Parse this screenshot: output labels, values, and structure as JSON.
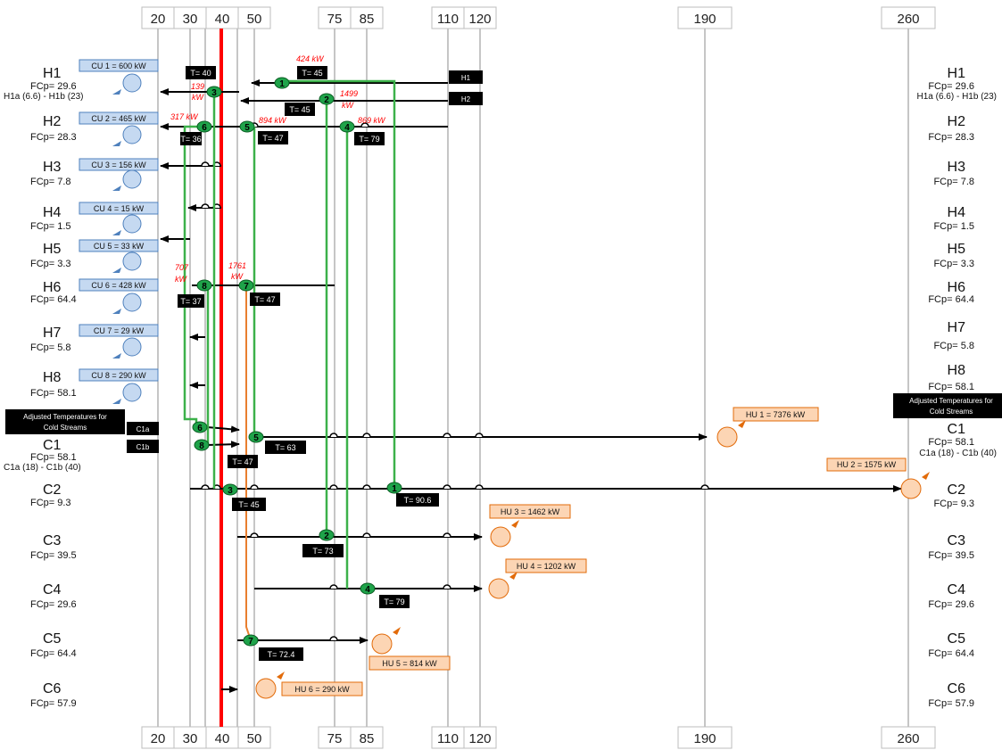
{
  "scale": {
    "ticks": [
      "20",
      "30",
      "40",
      "50",
      "75",
      "85",
      "110",
      "120",
      "190",
      "260"
    ]
  },
  "hot_streams": [
    {
      "name": "H1",
      "fcp": "FCp= 29.6",
      "extra": "H1a (6.6) -  H1b (23)"
    },
    {
      "name": "H2",
      "fcp": "FCp= 28.3"
    },
    {
      "name": "H3",
      "fcp": "FCp= 7.8"
    },
    {
      "name": "H4",
      "fcp": "FCp= 1.5"
    },
    {
      "name": "H5",
      "fcp": "FCp= 3.3"
    },
    {
      "name": "H6",
      "fcp": "FCp= 64.4"
    },
    {
      "name": "H7",
      "fcp": "FCp= 5.8"
    },
    {
      "name": "H8",
      "fcp": "FCp= 58.1"
    }
  ],
  "cold_streams": [
    {
      "name": "C1",
      "fcp": "FCp= 58.1",
      "extra": "C1a (18) -  C1b (40)"
    },
    {
      "name": "C2",
      "fcp": "FCp= 9.3"
    },
    {
      "name": "C3",
      "fcp": "FCp= 39.5"
    },
    {
      "name": "C4",
      "fcp": "FCp= 29.6"
    },
    {
      "name": "C5",
      "fcp": "FCp= 64.4"
    },
    {
      "name": "C6",
      "fcp": "FCp= 57.9"
    }
  ],
  "coolers": [
    "CU 1 = 600 kW",
    "CU 2 = 465 kW",
    "CU 3 = 156 kW",
    "CU 4 = 15 kW",
    "CU 5 = 33 kW",
    "CU 6 = 428 kW",
    "CU 7 = 29 kW",
    "CU 8 = 290 kW"
  ],
  "heaters": [
    "HU 1 = 7376 kW",
    "HU 2 = 1575 kW",
    "HU 3 = 1462 kW",
    "HU 4 = 1202 kW",
    "HU 5 = 814 kW",
    "HU 6 = 290 kW"
  ],
  "stream_tags": {
    "h1": "H1",
    "h2": "H2",
    "c1a": "C1a",
    "c1b": "C1b"
  },
  "adjusted_note": {
    "line1": "Adjusted Temperatures for",
    "line2": "Cold Streams"
  },
  "temperatures": {
    "t1": "T= 40",
    "t2": "T= 45",
    "t3": "T= 45",
    "t4": "T= 36",
    "t5": "T= 47",
    "t6": "T= 79",
    "t7": "T= 37",
    "t8": "T= 47",
    "t9": "T= 63",
    "t10": "T= 47",
    "t11": "T= 90.6",
    "t12": "T= 45",
    "t13": "T= 73",
    "t14": "T= 79",
    "t15": "T= 72.4"
  },
  "duties": {
    "d424": "424 kW",
    "d139a": "139",
    "d139b": "kW",
    "d1499a": "1499",
    "d1499b": "kW",
    "d317": "317 kW",
    "d894": "894 kW",
    "d869": "869 kW",
    "d707a": "707",
    "d707b": "kW",
    "d1761a": "1761",
    "d1761b": "kW"
  },
  "exchangers": [
    "1",
    "2",
    "3",
    "4",
    "5",
    "6",
    "7",
    "8"
  ],
  "colors": {
    "stream": "#000000",
    "grid": "#8c8c8c",
    "pinch": "#ff0000",
    "match_line": "#3cb14a",
    "exchanger_fill": "#1fa34a",
    "cooler_fill": "#c5d9f1",
    "cooler_stroke": "#4f81bd",
    "heater_fill": "#fcd5b4",
    "heater_stroke": "#e26b0a",
    "heater_line": "#e97f2f",
    "duty_text": "#ff0000"
  }
}
